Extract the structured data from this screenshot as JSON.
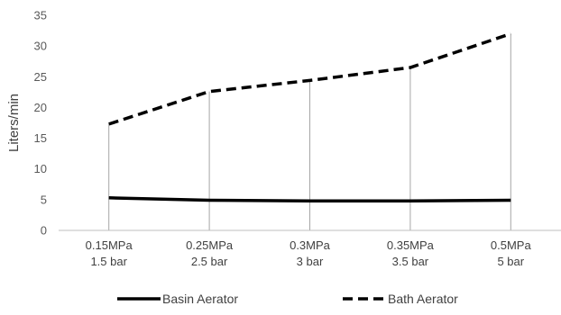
{
  "chart_data": {
    "type": "line",
    "title": "",
    "xlabel": "",
    "ylabel": "Liters/min",
    "ylim": [
      0,
      35
    ],
    "yticks": [
      0,
      5,
      10,
      15,
      20,
      25,
      30,
      35
    ],
    "categories": [
      [
        "0.15MPa",
        "1.5 bar"
      ],
      [
        "0.25MPa",
        "2.5 bar"
      ],
      [
        "0.3MPa",
        "3 bar"
      ],
      [
        "0.35MPa",
        "3.5 bar"
      ],
      [
        "0.5MPa",
        "5 bar"
      ]
    ],
    "drop_lines": true,
    "gridlines": false,
    "legend_position": "bottom",
    "series": [
      {
        "name": "Basin Aerator",
        "values": [
          5.3,
          4.9,
          4.8,
          4.8,
          4.9
        ],
        "color": "#000000",
        "dash": "solid"
      },
      {
        "name": "Bath Aerator",
        "values": [
          17.3,
          22.6,
          24.4,
          26.5,
          32.0
        ],
        "color": "#000000",
        "dash": "dashed"
      }
    ]
  }
}
